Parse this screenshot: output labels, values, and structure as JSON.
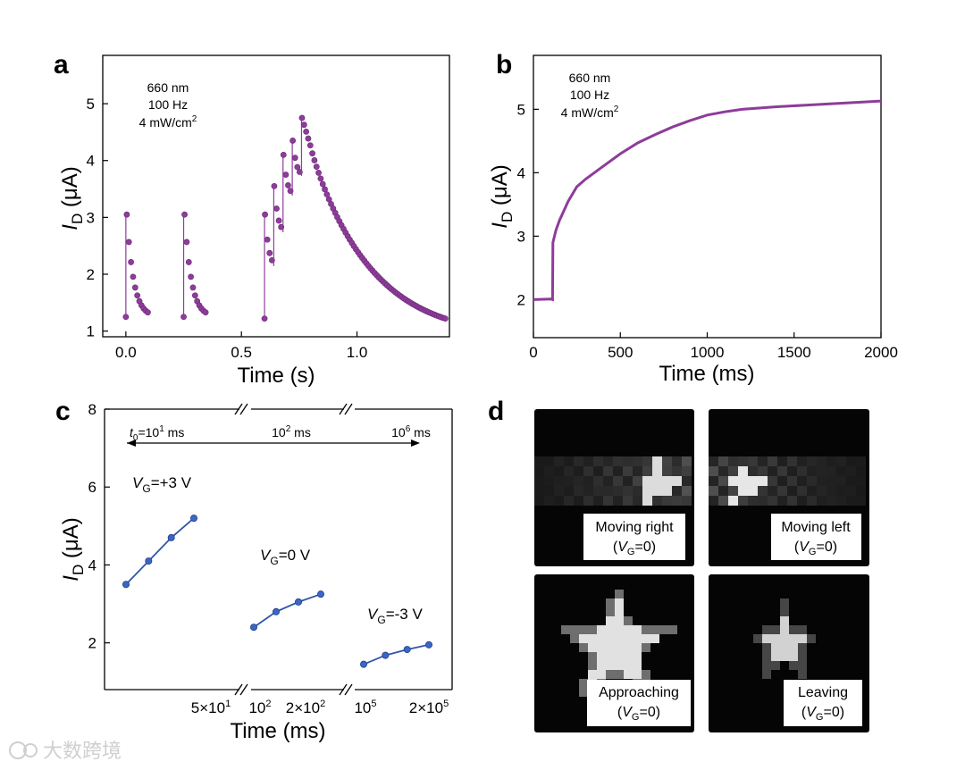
{
  "watermark": "大数跨境",
  "panels": {
    "a": {
      "letter": "a",
      "annotation": [
        "660 nm",
        "100 Hz",
        "4 mW/cm"
      ],
      "annotation_sup": "2",
      "ylabel_main": "I",
      "ylabel_sub": "D",
      "ylabel_unit": " (μA)",
      "xlabel": "Time (s)",
      "xticks": [
        {
          "v": 0.0,
          "label": "0.0"
        },
        {
          "v": 0.5,
          "label": "0.5"
        },
        {
          "v": 1.0,
          "label": "1.0"
        }
      ],
      "yticks": [
        {
          "v": 1,
          "label": "1"
        },
        {
          "v": 2,
          "label": "2"
        },
        {
          "v": 3,
          "label": "3"
        },
        {
          "v": 4,
          "label": "4"
        },
        {
          "v": 5,
          "label": "5"
        }
      ]
    },
    "b": {
      "letter": "b",
      "annotation": [
        "660 nm",
        "100 Hz",
        "4 mW/cm"
      ],
      "annotation_sup": "2",
      "ylabel_main": "I",
      "ylabel_sub": "D",
      "ylabel_unit": " (μA)",
      "xlabel": "Time (ms)",
      "xticks": [
        {
          "v": 0,
          "label": "0"
        },
        {
          "v": 500,
          "label": "500"
        },
        {
          "v": 1000,
          "label": "1000"
        },
        {
          "v": 1500,
          "label": "1500"
        },
        {
          "v": 2000,
          "label": "2000"
        }
      ],
      "yticks": [
        {
          "v": 2,
          "label": "2"
        },
        {
          "v": 3,
          "label": "3"
        },
        {
          "v": 4,
          "label": "4"
        },
        {
          "v": 5,
          "label": "5"
        }
      ]
    },
    "c": {
      "letter": "c",
      "ylabel_main": "I",
      "ylabel_sub": "D",
      "ylabel_unit": " (μA)",
      "xlabel": "Time (ms)",
      "arrow_labels": {
        "left_main": "t",
        "left_sub": "0",
        "left_rest": "=10",
        "left_sup": "1",
        "left_unit": " ms",
        "mid": "10",
        "mid_sup": "2",
        "mid_unit": " ms",
        "right": "10",
        "right_sup": "6",
        "right_unit": " ms"
      },
      "xtick_labels": [
        {
          "base": "5×10",
          "sup": "1"
        },
        {
          "base": "10",
          "sup": "2"
        },
        {
          "base": "2×10",
          "sup": "2"
        },
        {
          "base": "10",
          "sup": "5"
        },
        {
          "base": "2×10",
          "sup": "5"
        }
      ],
      "yticks": [
        {
          "v": 2,
          "label": "2"
        },
        {
          "v": 4,
          "label": "4"
        },
        {
          "v": 6,
          "label": "6"
        },
        {
          "v": 8,
          "label": "8"
        }
      ],
      "series_labels": [
        {
          "main": "V",
          "sub": "G",
          "rest": "=+3 V"
        },
        {
          "main": "V",
          "sub": "G",
          "rest": "=0 V"
        },
        {
          "main": "V",
          "sub": "G",
          "rest": "=-3 V"
        }
      ]
    },
    "d": {
      "letter": "d",
      "images": [
        {
          "line1": "Moving right",
          "line2_pre": "(",
          "line2_main": "V",
          "line2_sub": "G",
          "line2_post": "=0)"
        },
        {
          "line1": "Moving left",
          "line2_pre": "(",
          "line2_main": "V",
          "line2_sub": "G",
          "line2_post": "=0)"
        },
        {
          "line1": "Approaching",
          "line2_pre": "(",
          "line2_main": "V",
          "line2_sub": "G",
          "line2_post": "=0)"
        },
        {
          "line1": "Leaving",
          "line2_pre": "(",
          "line2_main": "V",
          "line2_sub": "G",
          "line2_post": "=0)"
        }
      ]
    }
  },
  "chart_data": [
    {
      "panel": "a",
      "type": "scatter",
      "xlabel": "Time (s)",
      "ylabel": "ID (μA)",
      "xlim": [
        -0.1,
        1.4
      ],
      "ylim": [
        0.9,
        5.85
      ],
      "color": "#8e3c9a",
      "pulse_trains": [
        {
          "start": 0.0,
          "peaks": [
            3.05
          ],
          "decay_to": 1.25,
          "decay_duration": 0.1
        },
        {
          "start": 0.25,
          "peaks": [
            3.05
          ],
          "decay_to": 1.25,
          "decay_duration": 0.1
        },
        {
          "start": 0.6,
          "peaks": [
            3.05,
            3.55,
            4.1,
            4.35,
            4.75
          ],
          "interval": 0.04,
          "decay_to": 1.22,
          "decay_duration": 0.62
        }
      ]
    },
    {
      "panel": "b",
      "type": "line",
      "xlabel": "Time (ms)",
      "ylabel": "ID (μA)",
      "xlim": [
        0,
        2000
      ],
      "ylim": [
        1.4,
        5.85
      ],
      "color": "#8e3c9a",
      "points": [
        [
          0,
          2.0
        ],
        [
          100,
          2.01
        ],
        [
          110,
          2.0
        ],
        [
          112,
          2.9
        ],
        [
          130,
          3.1
        ],
        [
          150,
          3.25
        ],
        [
          200,
          3.55
        ],
        [
          250,
          3.78
        ],
        [
          300,
          3.9
        ],
        [
          400,
          4.1
        ],
        [
          500,
          4.3
        ],
        [
          600,
          4.47
        ],
        [
          700,
          4.6
        ],
        [
          800,
          4.72
        ],
        [
          900,
          4.82
        ],
        [
          1000,
          4.91
        ],
        [
          1100,
          4.96
        ],
        [
          1200,
          5.0
        ],
        [
          1400,
          5.04
        ],
        [
          1600,
          5.07
        ],
        [
          1800,
          5.1
        ],
        [
          2000,
          5.13
        ]
      ]
    },
    {
      "panel": "c",
      "type": "line",
      "xlabel": "Time (ms)",
      "ylabel": "ID (μA)",
      "ylim": [
        0.8,
        8.0
      ],
      "color": "#2f56a8",
      "series": [
        {
          "name": "VG=+3 V",
          "segment": 0,
          "values": [
            3.5,
            4.1,
            4.7,
            5.2
          ]
        },
        {
          "name": "VG=0 V",
          "segment": 1,
          "values": [
            2.4,
            2.8,
            3.05,
            3.25
          ]
        },
        {
          "name": "VG=-3 V",
          "segment": 2,
          "values": [
            1.45,
            1.68,
            1.83,
            1.95
          ]
        }
      ]
    }
  ]
}
